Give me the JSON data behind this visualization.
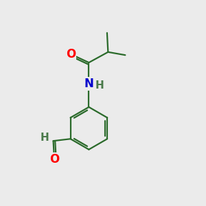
{
  "bg_color": "#ebebeb",
  "atom_colors": {
    "O": "#ff0000",
    "N": "#0000cc",
    "C": "#1a6e1a",
    "H": "#4a7a4a"
  },
  "bond_color": "#2a6a2a",
  "bond_width": 1.6,
  "font_size_heavy": 12,
  "font_size_H": 11
}
